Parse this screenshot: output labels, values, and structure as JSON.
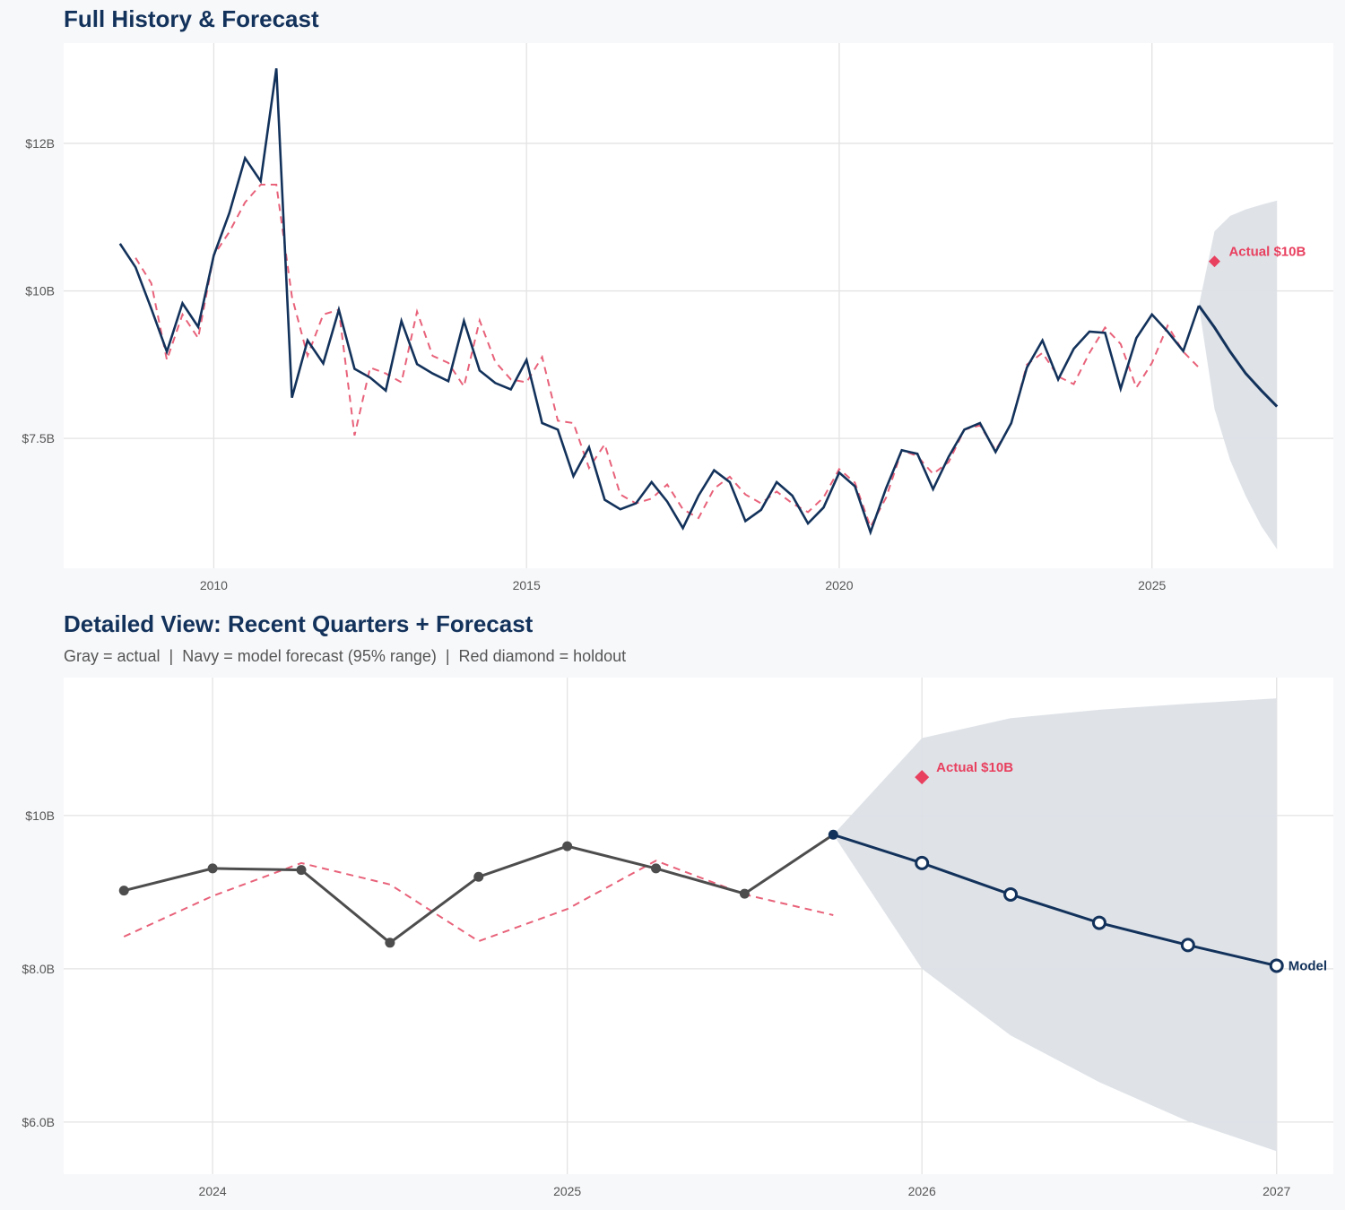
{
  "colors": {
    "actual_top": "#13325b",
    "actual_detail": "#4d4d4d",
    "forecast": "#13325b",
    "fitted": "#e8627a",
    "band": "#dde1e7",
    "holdout": "#e8405f"
  },
  "chart_data": [
    {
      "type": "line",
      "title": "Full History & Forecast",
      "x_ticks": [
        2010,
        2015,
        2020,
        2025
      ],
      "y_ticks": [
        {
          "value": 7.5,
          "label": "$7.5B"
        },
        {
          "value": 10,
          "label": "$10B"
        },
        {
          "value": 12.5,
          "label": "$12B"
        }
      ],
      "xlim": [
        2007.6,
        2027.9
      ],
      "ylim": [
        5.3,
        14.2
      ],
      "grid": true,
      "actual": {
        "x_start": 2008.5,
        "step": 0.25,
        "values": [
          10.8,
          10.4,
          9.7,
          8.97,
          9.79,
          9.39,
          10.6,
          11.32,
          12.25,
          11.86,
          13.77,
          8.19,
          9.16,
          8.77,
          9.68,
          8.68,
          8.53,
          8.31,
          9.49,
          8.76,
          8.6,
          8.47,
          9.49,
          8.65,
          8.44,
          8.33,
          8.83,
          7.76,
          7.65,
          6.86,
          7.35,
          6.46,
          6.3,
          6.4,
          6.76,
          6.43,
          5.98,
          6.53,
          6.96,
          6.76,
          6.1,
          6.29,
          6.76,
          6.53,
          6.06,
          6.33,
          6.92,
          6.69,
          5.91,
          6.66,
          7.3,
          7.24,
          6.64,
          7.19,
          7.65,
          7.76,
          7.27,
          7.76,
          8.7,
          9.16,
          8.5,
          9.02,
          9.31,
          9.29,
          8.34,
          9.2,
          9.6,
          9.31,
          8.98,
          9.75
        ]
      },
      "fitted": {
        "x_start": 2008.75,
        "step": 0.25,
        "values": [
          10.56,
          10.13,
          8.83,
          9.6,
          9.2,
          10.6,
          11.0,
          11.5,
          11.8,
          11.8,
          9.9,
          8.9,
          9.6,
          9.68,
          7.55,
          8.7,
          8.6,
          8.45,
          9.65,
          8.9,
          8.78,
          8.38,
          9.5,
          8.8,
          8.5,
          8.45,
          8.88,
          7.8,
          7.76,
          7.0,
          7.4,
          6.55,
          6.4,
          6.48,
          6.72,
          6.3,
          6.15,
          6.65,
          6.85,
          6.55,
          6.4,
          6.6,
          6.4,
          6.25,
          6.5,
          6.98,
          6.75,
          6.0,
          6.5,
          7.3,
          7.2,
          6.9,
          7.1,
          7.65,
          7.72,
          7.3,
          7.75,
          8.75,
          8.95,
          8.55,
          8.42,
          8.95,
          9.38,
          9.1,
          8.36,
          8.78,
          9.41,
          8.97,
          8.7
        ]
      },
      "forecast": {
        "x": [
          2025.75,
          2026,
          2026.25,
          2026.5,
          2026.75,
          2027
        ],
        "values": [
          9.75,
          9.38,
          8.97,
          8.6,
          8.31,
          8.04
        ],
        "upper": [
          9.75,
          11.01,
          11.27,
          11.38,
          11.46,
          11.53
        ],
        "lower": [
          9.75,
          8.0,
          7.13,
          6.52,
          6.01,
          5.62
        ]
      },
      "holdout": {
        "x": 2026,
        "value": 10.5,
        "label": "Actual $10B"
      }
    },
    {
      "type": "line",
      "title": "Detailed View: Recent Quarters + Forecast",
      "subtitle": "Gray = actual  |  Navy = model forecast (95% range)  |  Red diamond = holdout",
      "x_ticks": [
        2024,
        2025,
        2026,
        2027
      ],
      "y_ticks": [
        {
          "value": 6,
          "label": "$6.0B"
        },
        {
          "value": 8,
          "label": "$8.0B"
        },
        {
          "value": 10,
          "label": "$10B"
        }
      ],
      "xlim": [
        2023.58,
        2027.16
      ],
      "ylim": [
        5.32,
        11.8
      ],
      "grid": true,
      "actual": {
        "x": [
          2023.75,
          2024,
          2024.25,
          2024.5,
          2024.75,
          2025,
          2025.25,
          2025.5,
          2025.75
        ],
        "values": [
          9.02,
          9.31,
          9.29,
          8.34,
          9.2,
          9.6,
          9.31,
          8.98,
          9.75
        ]
      },
      "fitted": {
        "x": [
          2023.75,
          2024,
          2024.25,
          2024.5,
          2024.75,
          2025,
          2025.25,
          2025.5,
          2025.75
        ],
        "values": [
          8.42,
          8.95,
          9.38,
          9.1,
          8.36,
          8.78,
          9.41,
          8.97,
          8.7
        ]
      },
      "forecast": {
        "x": [
          2025.75,
          2026,
          2026.25,
          2026.5,
          2026.75,
          2027
        ],
        "values": [
          9.75,
          9.38,
          8.97,
          8.6,
          8.31,
          8.04
        ],
        "upper": [
          9.75,
          11.01,
          11.27,
          11.38,
          11.46,
          11.53
        ],
        "lower": [
          9.75,
          8.0,
          7.13,
          6.52,
          6.01,
          5.62
        ],
        "label": "Model"
      },
      "holdout": {
        "x": 2026,
        "value": 10.5,
        "label": "Actual $10B"
      }
    }
  ]
}
